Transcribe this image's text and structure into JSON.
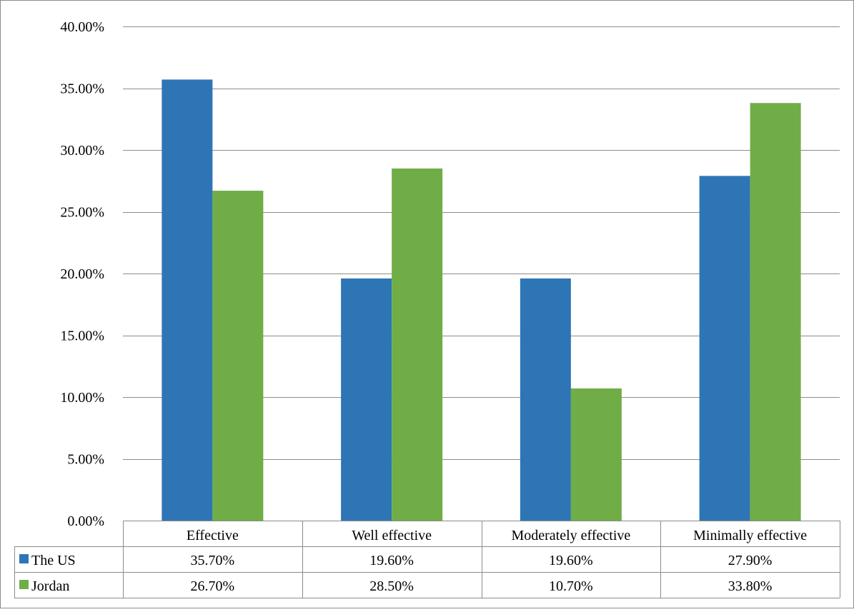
{
  "chart_data": {
    "type": "bar",
    "title": "",
    "xlabel": "",
    "ylabel": "",
    "ylim": [
      0,
      0.4
    ],
    "yticks": [
      0,
      0.05,
      0.1,
      0.15,
      0.2,
      0.25,
      0.3,
      0.35,
      0.4
    ],
    "ytick_labels": [
      "0.00%",
      "5.00%",
      "10.00%",
      "15.00%",
      "20.00%",
      "25.00%",
      "30.00%",
      "35.00%",
      "40.00%"
    ],
    "grid": true,
    "legend": "data-table",
    "categories": [
      "Effective",
      "Well effective",
      "Moderately effective",
      "Minimally effective"
    ],
    "series": [
      {
        "name": "The US",
        "color": "#2e75b6",
        "values": [
          0.357,
          0.196,
          0.196,
          0.279
        ],
        "labels": [
          "35.70%",
          "19.60%",
          "19.60%",
          "27.90%"
        ]
      },
      {
        "name": "Jordan",
        "color": "#70ad47",
        "values": [
          0.267,
          0.285,
          0.107,
          0.338
        ],
        "labels": [
          "26.70%",
          "28.50%",
          "10.70%",
          "33.80%"
        ]
      }
    ]
  }
}
